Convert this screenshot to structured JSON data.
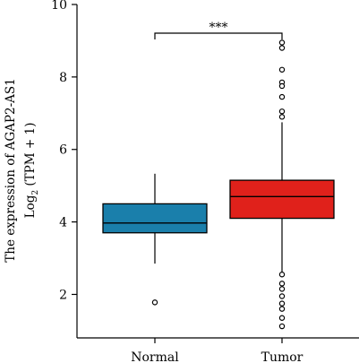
{
  "chart_data": {
    "type": "box",
    "ylabel_line1": "The expression of AGAP2-AS1",
    "ylabel_line2_prefix": "Log",
    "ylabel_line2_sub": "2",
    "ylabel_line2_suffix": " (TPM + 1)",
    "xlabel": "",
    "ylim": [
      0.8,
      10
    ],
    "yticks": [
      2,
      4,
      6,
      8,
      10
    ],
    "ytick_labels": [
      "2",
      "4",
      "6",
      "8",
      "10"
    ],
    "significance": "***",
    "groups": [
      {
        "name": "Normal",
        "color": "#1a7fab",
        "whisker_low": 2.85,
        "q1": 3.7,
        "median": 3.97,
        "q3": 4.5,
        "whisker_high": 5.33,
        "outliers": [
          1.78
        ]
      },
      {
        "name": "Tumor",
        "color": "#e0211b",
        "whisker_low": 2.62,
        "q1": 4.1,
        "median": 4.7,
        "q3": 5.15,
        "whisker_high": 6.75,
        "outliers": [
          8.95,
          8.8,
          8.2,
          7.85,
          7.75,
          7.45,
          7.05,
          6.9,
          2.55,
          2.3,
          2.15,
          1.95,
          1.75,
          1.6,
          1.35,
          1.12
        ]
      }
    ]
  }
}
